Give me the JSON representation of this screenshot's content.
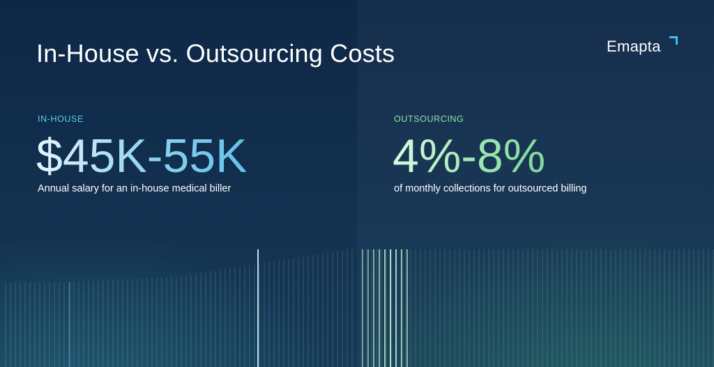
{
  "title": "In-House vs. Outsourcing Costs",
  "brand": {
    "name": "Emapta",
    "mark_color": "#3ec3e8"
  },
  "in_house": {
    "label": "IN-HOUSE",
    "value": "$45K-55K",
    "description": "Annual salary for an in-house medical biller",
    "accent": "#5ec8e6"
  },
  "outsourcing": {
    "label": "OUTSOURCING",
    "value": "4%-8%",
    "description": "of monthly collections for outsourced billing",
    "accent": "#8fe3a6"
  }
}
